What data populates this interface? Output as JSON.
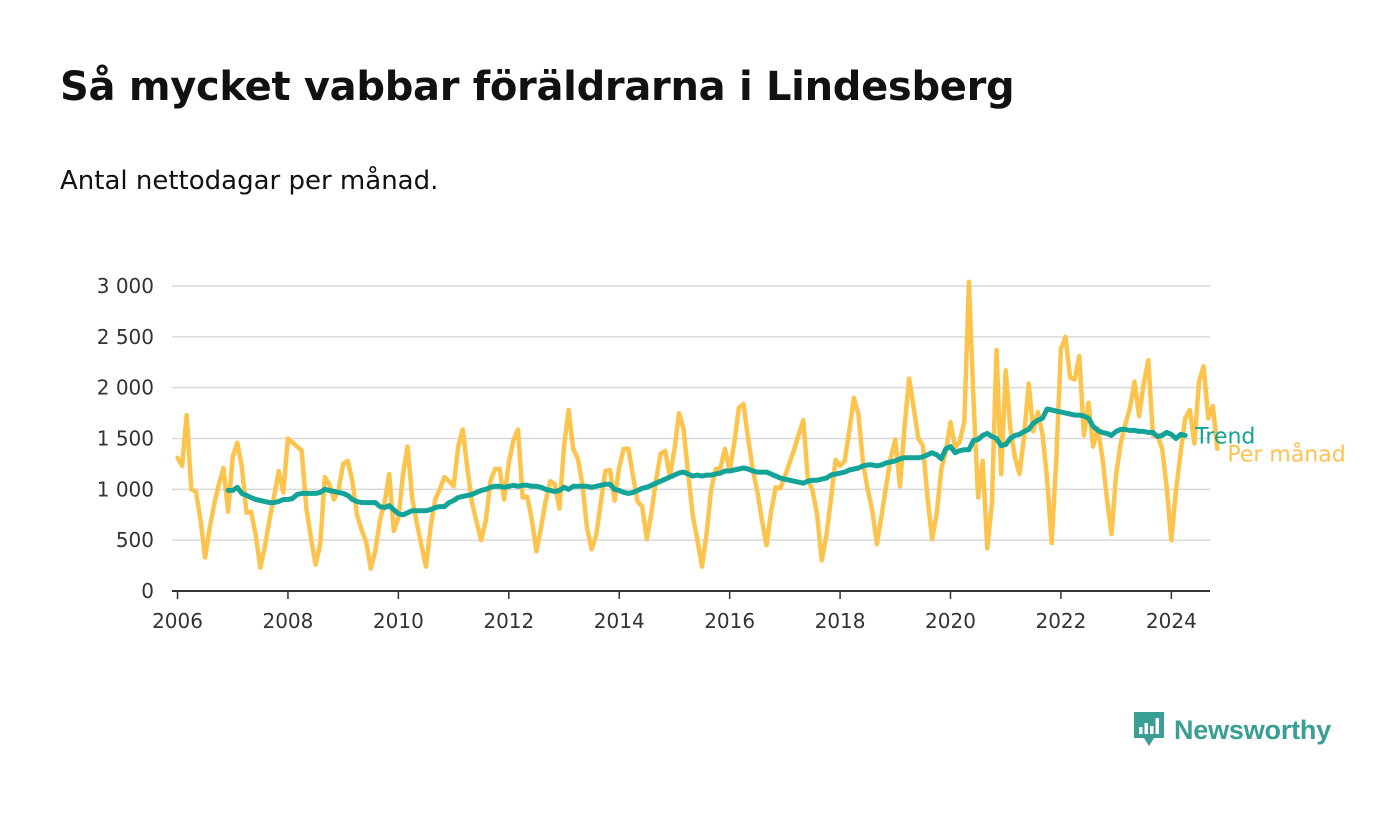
{
  "header": {
    "title": "Så mycket vabbar föräldrarna i Lindesberg",
    "subtitle": "Antal nettodagar per månad."
  },
  "brand": {
    "name": "Newsworthy",
    "icon": "newsworthy-logo-icon",
    "color": "#3a9e95"
  },
  "chart_data": {
    "type": "line",
    "title": "Så mycket vabbar föräldrarna i Lindesberg",
    "subtitle": "Antal nettodagar per månad.",
    "xlabel": "",
    "ylabel": "",
    "xlim": [
      2005.9,
      2024.7
    ],
    "ylim": [
      0,
      3000
    ],
    "x_ticks": [
      2006,
      2008,
      2010,
      2012,
      2014,
      2016,
      2018,
      2020,
      2022,
      2024
    ],
    "x_tick_labels": [
      "2006",
      "2008",
      "2010",
      "2012",
      "2014",
      "2016",
      "2018",
      "2020",
      "2022",
      "2024"
    ],
    "y_ticks": [
      0,
      500,
      1000,
      1500,
      2000,
      2500,
      3000
    ],
    "y_tick_labels": [
      "0",
      "500",
      "1 000",
      "1 500",
      "2 000",
      "2 500",
      "3 000"
    ],
    "grid": "horizontal",
    "legend": "direct labels at right end of lines",
    "series": [
      {
        "name": "Per månad",
        "color": "#fcc44c",
        "x_start": 2006.0,
        "step": 0.083333,
        "values": [
          1310,
          1230,
          1730,
          1000,
          980,
          700,
          330,
          620,
          860,
          1050,
          1210,
          780,
          1320,
          1460,
          1220,
          770,
          780,
          550,
          230,
          440,
          700,
          930,
          1180,
          970,
          1500,
          1460,
          1420,
          1380,
          810,
          520,
          260,
          460,
          1120,
          1050,
          900,
          1000,
          1250,
          1280,
          1080,
          750,
          600,
          480,
          220,
          400,
          700,
          870,
          1150,
          590,
          720,
          1150,
          1420,
          910,
          670,
          450,
          240,
          630,
          900,
          1000,
          1120,
          1080,
          1030,
          1420,
          1590,
          1200,
          870,
          680,
          500,
          690,
          1080,
          1200,
          1200,
          900,
          1260,
          1480,
          1590,
          920,
          930,
          700,
          390,
          620,
          880,
          1080,
          1050,
          810,
          1420,
          1780,
          1400,
          1300,
          1050,
          620,
          410,
          550,
          870,
          1180,
          1190,
          890,
          1220,
          1400,
          1400,
          1130,
          880,
          830,
          510,
          770,
          1090,
          1350,
          1380,
          1130,
          1390,
          1750,
          1590,
          1150,
          740,
          500,
          240,
          570,
          1000,
          1200,
          1210,
          1400,
          1180,
          1450,
          1800,
          1840,
          1500,
          1200,
          980,
          700,
          450,
          780,
          1020,
          1010,
          1130,
          1260,
          1390,
          1540,
          1680,
          1100,
          990,
          750,
          300,
          540,
          900,
          1290,
          1230,
          1280,
          1580,
          1900,
          1730,
          1250,
          1000,
          790,
          460,
          740,
          1030,
          1310,
          1490,
          1030,
          1610,
          2090,
          1800,
          1500,
          1430,
          920,
          510,
          760,
          1200,
          1370,
          1660,
          1410,
          1470,
          1660,
          3040,
          1880,
          920,
          1280,
          420,
          860,
          2370,
          1150,
          2170,
          1600,
          1320,
          1150,
          1520,
          2040,
          1570,
          1760,
          1540,
          1100,
          470,
          1300,
          2380,
          2500,
          2100,
          2080,
          2310,
          1530,
          1850,
          1420,
          1600,
          1320,
          910,
          560,
          1150,
          1450,
          1640,
          1800,
          2060,
          1720,
          2040,
          2270,
          1530,
          1530,
          1400,
          1020,
          500,
          980,
          1350,
          1700,
          1780,
          1450,
          2060,
          2210,
          1700,
          1820,
          1400
        ]
      },
      {
        "name": "Trend",
        "color": "#14a397",
        "x_start": 2006.9167,
        "step": 0.083333,
        "values": [
          990,
          990,
          1020,
          960,
          940,
          920,
          900,
          890,
          880,
          870,
          870,
          880,
          900,
          900,
          910,
          950,
          960,
          960,
          960,
          960,
          970,
          1000,
          990,
          980,
          970,
          960,
          940,
          900,
          880,
          870,
          870,
          870,
          870,
          830,
          820,
          840,
          800,
          760,
          750,
          770,
          790,
          790,
          790,
          790,
          800,
          820,
          830,
          830,
          870,
          890,
          920,
          930,
          940,
          950,
          970,
          990,
          1000,
          1020,
          1030,
          1030,
          1020,
          1030,
          1040,
          1030,
          1040,
          1040,
          1030,
          1030,
          1020,
          1000,
          990,
          980,
          990,
          1020,
          1000,
          1030,
          1030,
          1030,
          1030,
          1020,
          1030,
          1040,
          1050,
          1050,
          1000,
          990,
          970,
          960,
          970,
          990,
          1010,
          1020,
          1040,
          1060,
          1080,
          1100,
          1120,
          1140,
          1160,
          1170,
          1150,
          1130,
          1140,
          1130,
          1140,
          1140,
          1150,
          1160,
          1180,
          1180,
          1190,
          1200,
          1210,
          1200,
          1180,
          1170,
          1170,
          1170,
          1150,
          1130,
          1110,
          1100,
          1090,
          1080,
          1070,
          1060,
          1080,
          1090,
          1090,
          1100,
          1110,
          1140,
          1150,
          1160,
          1170,
          1190,
          1200,
          1210,
          1230,
          1240,
          1240,
          1230,
          1240,
          1260,
          1270,
          1280,
          1300,
          1310,
          1310,
          1310,
          1310,
          1320,
          1340,
          1360,
          1340,
          1300,
          1400,
          1420,
          1360,
          1380,
          1390,
          1390,
          1480,
          1490,
          1530,
          1550,
          1520,
          1500,
          1430,
          1440,
          1500,
          1530,
          1540,
          1570,
          1590,
          1650,
          1680,
          1700,
          1790,
          1780,
          1770,
          1760,
          1750,
          1740,
          1730,
          1730,
          1720,
          1700,
          1620,
          1580,
          1560,
          1550,
          1530,
          1570,
          1590,
          1590,
          1580,
          1580,
          1570,
          1570,
          1560,
          1560,
          1520,
          1530,
          1560,
          1540,
          1500,
          1540,
          1530
        ]
      }
    ]
  }
}
